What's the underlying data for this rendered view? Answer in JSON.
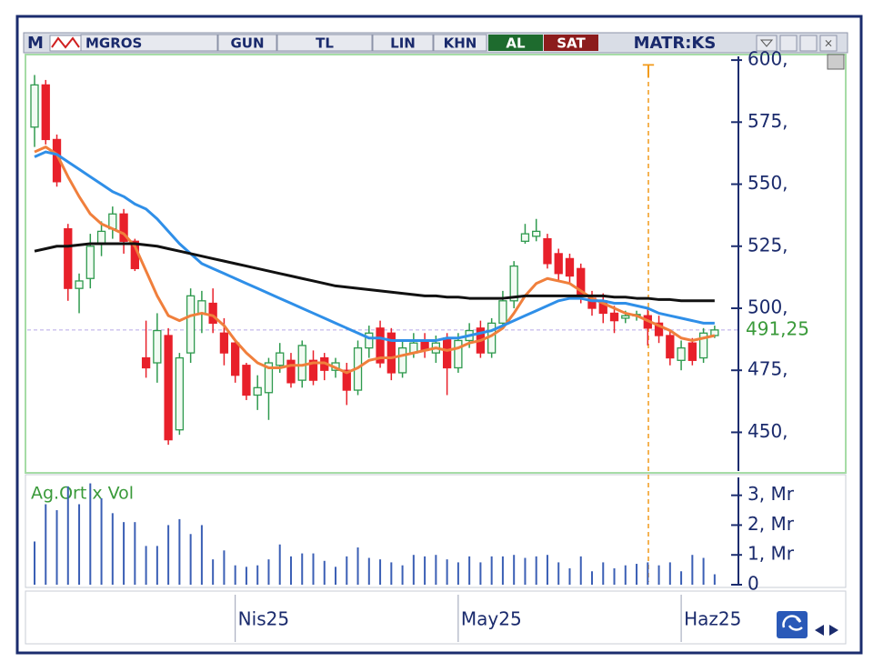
{
  "toolbar": {
    "logo": "M",
    "symbol": "MGROS",
    "buttons": [
      "GUN",
      "TL",
      "LIN",
      "KHN"
    ],
    "buy": "AL",
    "sell": "SAT",
    "brand": "MATR:KS"
  },
  "chart_data": {
    "type": "candlestick",
    "categories": [
      null,
      null,
      null,
      null,
      null,
      null,
      null,
      null,
      null,
      null,
      null,
      null,
      null,
      null,
      null,
      null,
      null,
      null,
      "Nis25",
      null,
      null,
      null,
      null,
      null,
      null,
      null,
      null,
      null,
      null,
      null,
      null,
      null,
      null,
      null,
      null,
      null,
      null,
      null,
      "May25",
      null,
      null,
      null,
      null,
      null,
      null,
      null,
      null,
      null,
      null,
      null,
      null,
      null,
      null,
      null,
      null,
      null,
      null,
      null,
      "Haz25",
      null,
      null,
      null
    ],
    "open": [
      573,
      590,
      568,
      532,
      508,
      512,
      526,
      532,
      538,
      527,
      480,
      478,
      489,
      451,
      482,
      498,
      502,
      490,
      486,
      477,
      465,
      466,
      477,
      479,
      471,
      479,
      480,
      475,
      475,
      467,
      484,
      492,
      490,
      474,
      482,
      487,
      482,
      488,
      476,
      487,
      492,
      482,
      494,
      503,
      527,
      529,
      528,
      522,
      520,
      516,
      504,
      503,
      498,
      496,
      497,
      497,
      494,
      489,
      479,
      486,
      480,
      489
    ],
    "high": [
      594,
      592,
      570,
      534,
      514,
      530,
      535,
      541,
      540,
      528,
      495,
      498,
      492,
      482,
      508,
      507,
      508,
      496,
      487,
      478,
      473,
      480,
      486,
      482,
      487,
      483,
      482,
      480,
      478,
      487,
      493,
      495,
      492,
      487,
      490,
      490,
      489,
      490,
      490,
      494,
      495,
      496,
      507,
      519,
      534,
      536,
      530,
      524,
      522,
      518,
      507,
      506,
      501,
      499,
      499,
      500,
      497,
      491,
      487,
      488,
      492,
      493
    ],
    "low": [
      565,
      566,
      549,
      503,
      498,
      508,
      521,
      528,
      522,
      515,
      472,
      470,
      445,
      449,
      478,
      490,
      490,
      477,
      470,
      463,
      459,
      455,
      474,
      468,
      468,
      469,
      471,
      472,
      461,
      465,
      480,
      476,
      471,
      472,
      480,
      480,
      478,
      465,
      474,
      484,
      480,
      480,
      492,
      500,
      526,
      527,
      516,
      511,
      510,
      502,
      497,
      494,
      490,
      494,
      495,
      485,
      486,
      477,
      475,
      477,
      478,
      488
    ],
    "close": [
      590,
      568,
      551,
      508,
      511,
      525,
      531,
      538,
      527,
      516,
      476,
      491,
      447,
      480,
      505,
      503,
      494,
      482,
      473,
      465,
      468,
      478,
      482,
      470,
      485,
      471,
      475,
      478,
      467,
      484,
      490,
      478,
      474,
      484,
      486,
      483,
      486,
      476,
      487,
      491,
      482,
      494,
      503,
      517,
      530,
      531,
      518,
      514,
      513,
      505,
      500,
      498,
      495,
      497,
      497.5,
      492,
      489,
      480,
      484,
      479,
      490,
      491.25
    ],
    "up_color": "#2f9a4e",
    "down_color": "#e8202a",
    "series": [
      {
        "color": "#f07f3c",
        "values": [
          563,
          565,
          562,
          553,
          545,
          538,
          534,
          532,
          530,
          525,
          515,
          505,
          497,
          495,
          497,
          498,
          497,
          493,
          487,
          482,
          478,
          476,
          476,
          477,
          477,
          478,
          478,
          476,
          474,
          476,
          479,
          480,
          480,
          481,
          482,
          483,
          484,
          483,
          484,
          486,
          487,
          489,
          492,
          498,
          505,
          510,
          512,
          511,
          510,
          507,
          504,
          502,
          500,
          498,
          497,
          495,
          493,
          491,
          488,
          487,
          488,
          489
        ]
      },
      {
        "color": "#2f8fe8",
        "values": [
          561,
          563,
          562,
          559,
          556,
          553,
          550,
          547,
          545,
          542,
          540,
          536,
          531,
          526,
          522,
          518,
          516,
          514,
          512,
          510,
          508,
          506,
          504,
          502,
          500,
          498,
          496,
          494,
          492,
          490,
          488,
          488,
          487,
          487,
          487,
          487,
          487,
          488,
          488,
          489,
          490,
          491,
          493,
          495,
          497,
          499,
          501,
          503,
          504,
          504,
          503,
          503,
          502,
          502,
          501,
          500,
          498,
          497,
          496,
          495,
          494,
          494
        ]
      },
      {
        "color": "#111111",
        "values": [
          523,
          524,
          525,
          525,
          525.5,
          526,
          526,
          526,
          526,
          526,
          525.5,
          525,
          524,
          523,
          522,
          521,
          520,
          519,
          518,
          517,
          516,
          515,
          514,
          513,
          512,
          511,
          510,
          509,
          508.5,
          508,
          507.5,
          507,
          506.5,
          506,
          505.5,
          505,
          505,
          504.5,
          504.5,
          504,
          504,
          504,
          504,
          504.5,
          505,
          505,
          505,
          505,
          505,
          505,
          505,
          505,
          504.5,
          504.5,
          504,
          504,
          503.5,
          503.5,
          503,
          503,
          503,
          503
        ]
      }
    ],
    "ylim": [
      434.4,
      601.5
    ],
    "yticks": [
      {
        "value": 450,
        "label": "450,"
      },
      {
        "value": 475,
        "label": "475,"
      },
      {
        "value": 500,
        "label": "500,"
      },
      {
        "value": 525,
        "label": "525,"
      },
      {
        "value": 550,
        "label": "550,"
      },
      {
        "value": 575,
        "label": "575,"
      },
      {
        "value": 600,
        "label": "600,"
      }
    ],
    "last_price": {
      "value": 491.25,
      "label": "491,25"
    },
    "marker_label": "T",
    "volume": {
      "label": "Ag.Ort x Vol",
      "color": "#3b5fb5",
      "values": [
        1.45,
        2.7,
        2.5,
        3.3,
        2.7,
        3.4,
        2.9,
        2.4,
        2.1,
        2.1,
        1.3,
        1.3,
        2.0,
        2.2,
        1.7,
        2.0,
        0.85,
        1.15,
        0.65,
        0.6,
        0.65,
        0.85,
        1.35,
        0.95,
        1.05,
        1.05,
        0.8,
        0.6,
        0.95,
        1.25,
        0.9,
        0.85,
        0.75,
        0.65,
        1.0,
        0.95,
        1.0,
        0.85,
        0.75,
        0.95,
        0.75,
        0.95,
        0.95,
        1.0,
        0.9,
        0.95,
        1.0,
        0.75,
        0.55,
        0.95,
        0.45,
        0.75,
        0.55,
        0.65,
        0.7,
        0.75,
        0.65,
        0.75,
        0.45,
        1.0,
        0.9,
        0.35
      ],
      "ylim": [
        0,
        3.6
      ],
      "yticks": [
        0,
        {
          "value": 1,
          "label": "1, Mr"
        },
        {
          "value": 2,
          "label": "2, Mr"
        },
        {
          "value": 3,
          "label": "3, Mr"
        }
      ]
    }
  }
}
